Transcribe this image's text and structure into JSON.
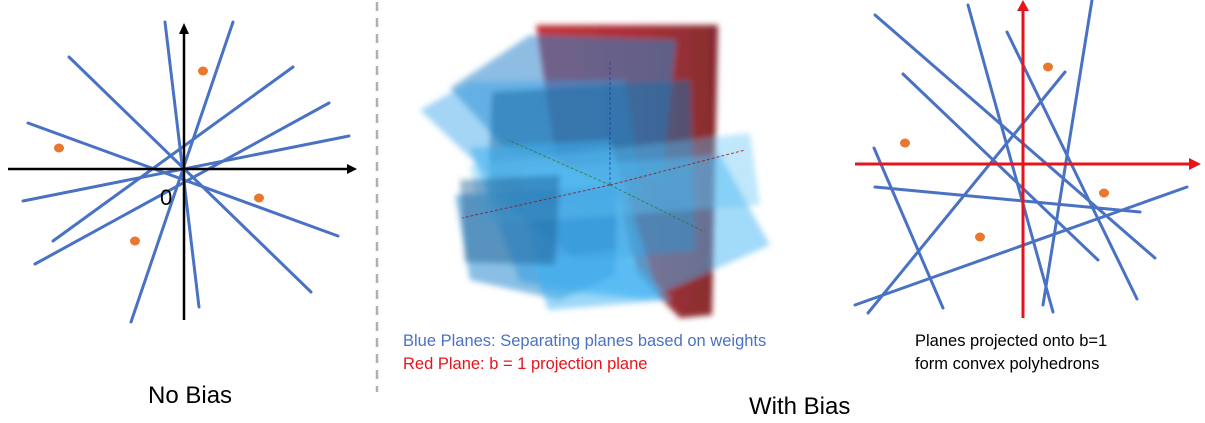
{
  "labels": {
    "no_bias": "No Bias",
    "with_bias": "With Bias",
    "origin": "0",
    "blue_planes": "Blue Planes: Separating planes based on weights",
    "red_plane": "Red Plane: b = 1 projection plane",
    "projected_line1": "Planes projected onto b=1",
    "projected_line2": "form convex polyhedrons"
  },
  "colors": {
    "line_blue": "#4a72c4",
    "axis_red": "#e8141b",
    "point_orange": "#e9772e",
    "divider_gray": "#b0b0b0"
  }
}
